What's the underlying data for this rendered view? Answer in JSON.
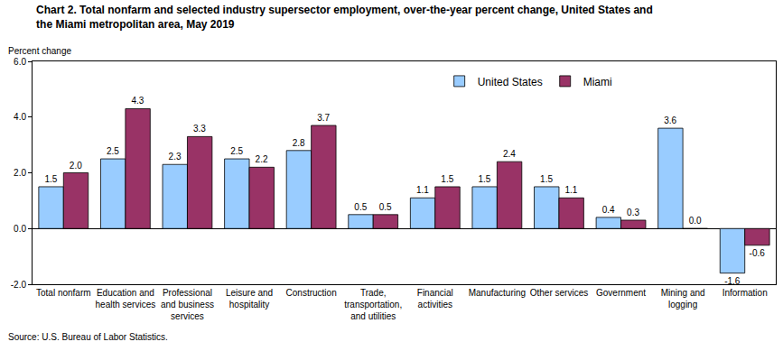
{
  "chart_data": {
    "type": "bar",
    "title": "Chart 2. Total nonfarm and selected industry supersector employment, over-the-year percent change, United States and the Miami metropolitan area, May 2019",
    "y_label": "Percent change",
    "annotations": [
      {
        "text": "Source: U.S. Bureau of Labor Statistics."
      }
    ],
    "categories": [
      "Total nonfarm",
      "Education and health services",
      "Professional and business services",
      "Leisure and hospitality",
      "Construction",
      "Trade, transportation, and utilities",
      "Financial activities",
      "Manufacturing",
      "Other services",
      "Government",
      "Mining and logging",
      "Information"
    ],
    "series": [
      {
        "name": "United States",
        "color": "#99ccff",
        "values": [
          1.5,
          2.5,
          2.3,
          2.5,
          2.8,
          0.5,
          1.1,
          1.5,
          1.5,
          0.4,
          3.6,
          -1.6
        ],
        "value_labels": [
          "1.5",
          "2.5",
          "2.3",
          "2.5",
          "2.8",
          "0.5",
          "1.1",
          "1.5",
          "1.5",
          "0.4",
          "3.6",
          "-1.6"
        ]
      },
      {
        "name": "Miami",
        "color": "#993366",
        "values": [
          2.0,
          4.3,
          3.3,
          2.2,
          3.7,
          0.5,
          1.5,
          2.4,
          1.1,
          0.3,
          0.0,
          -0.6
        ],
        "value_labels": [
          "2.0",
          "4.3",
          "3.3",
          "2.2",
          "3.7",
          "0.5",
          "1.5",
          "2.4",
          "1.1",
          "0.3",
          "0.0",
          "-0.6"
        ]
      }
    ],
    "ylim": [
      -2,
      6
    ],
    "yticks": [
      {
        "value": -2,
        "label": "-2.0"
      },
      {
        "value": 0,
        "label": "0.0"
      },
      {
        "value": 2,
        "label": "2.0"
      },
      {
        "value": 4,
        "label": "4.0"
      },
      {
        "value": 6,
        "label": "6.0"
      }
    ],
    "grid": false,
    "legend": "top",
    "data_labels": true
  }
}
